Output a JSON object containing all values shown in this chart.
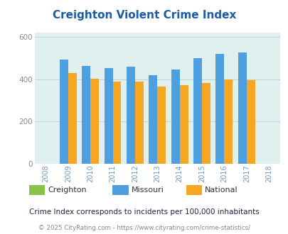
{
  "title": "Creighton Violent Crime Index",
  "years": [
    2008,
    2009,
    2010,
    2011,
    2012,
    2013,
    2014,
    2015,
    2016,
    2017,
    2018
  ],
  "bar_years": [
    2009,
    2010,
    2011,
    2012,
    2013,
    2014,
    2015,
    2016,
    2017
  ],
  "missouri": [
    493,
    462,
    452,
    458,
    421,
    447,
    501,
    521,
    526
  ],
  "national": [
    428,
    404,
    390,
    390,
    366,
    372,
    383,
    399,
    396
  ],
  "creighton": [
    0,
    0,
    0,
    0,
    0,
    0,
    0,
    0,
    0
  ],
  "bar_color_missouri": "#4D9FE0",
  "bar_color_national": "#F5A623",
  "bar_color_creighton": "#8BC34A",
  "background_color": "#DFF0EE",
  "title_color": "#1A5CA8",
  "ylim": [
    0,
    620
  ],
  "yticks": [
    0,
    200,
    400,
    600
  ],
  "bar_width": 0.38,
  "legend_subtitle": "Crime Index corresponds to incidents per 100,000 inhabitants",
  "footer": "© 2025 CityRating.com - https://www.cityrating.com/crime-statistics/",
  "xtick_color": "#7799BB",
  "ytick_color": "#888888",
  "grid_color": "#bbcccc",
  "fig_bg": "#ffffff",
  "legend_label_color": "#333333",
  "subtitle_color": "#222244",
  "footer_color": "#888888",
  "missouri_label_color": "#4D9FE0",
  "national_label_color": "#CC8800",
  "creighton_label_color": "#555555"
}
